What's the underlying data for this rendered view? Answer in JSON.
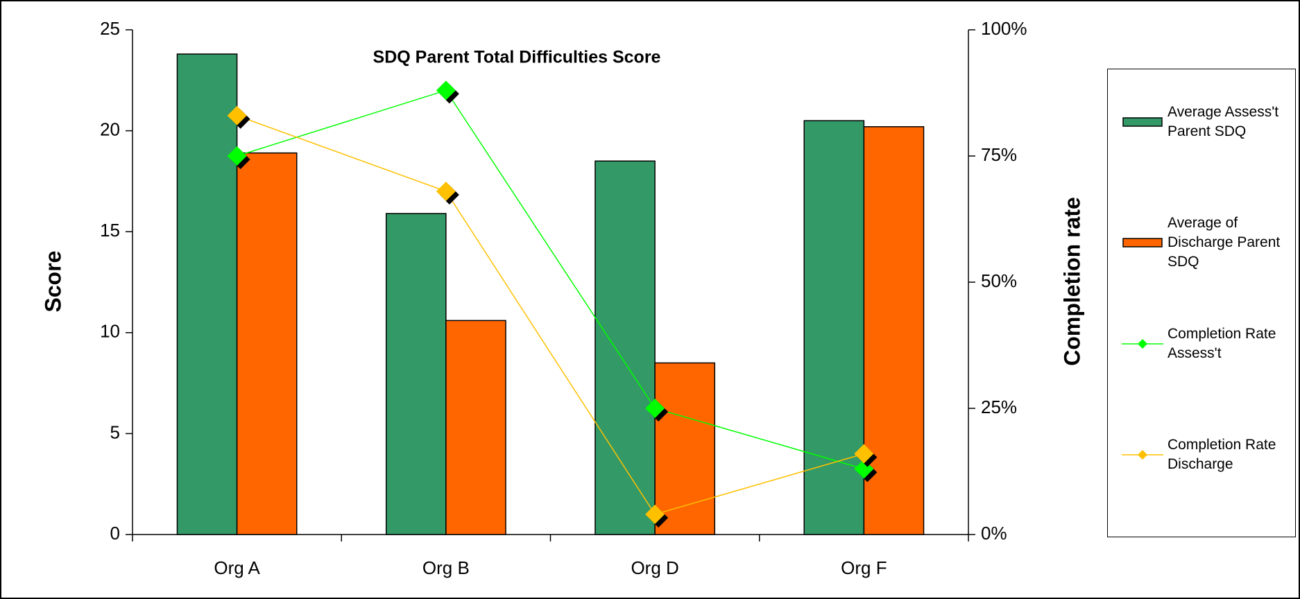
{
  "chart_data": {
    "type": "bar",
    "title": "SDQ Parent Total Difficulties Score",
    "categories": [
      "Org A",
      "Org B",
      "Org D",
      "Org F"
    ],
    "series": [
      {
        "name": "Average Assess't Parent SDQ",
        "color": "#339966",
        "values": [
          23.8,
          15.9,
          18.5,
          20.5
        ]
      },
      {
        "name": "Average of Discharge Parent SDQ",
        "color": "#ff6600",
        "values": [
          18.9,
          10.6,
          8.5,
          20.2
        ]
      },
      {
        "name": "Completion Rate Assess't",
        "color": "#00ff00",
        "type": "line",
        "axis": "y2",
        "values": [
          75,
          88,
          25,
          13
        ]
      },
      {
        "name": "Completion Rate Discharge",
        "color": "#ffc000",
        "type": "line",
        "axis": "y2",
        "values": [
          83,
          68,
          4,
          16
        ]
      }
    ],
    "y_label": "Score",
    "y2_label": "Completion rate",
    "ylim": [
      0,
      25
    ],
    "yticks": [
      0,
      5,
      10,
      15,
      20,
      25
    ],
    "y2lim": [
      0,
      100
    ],
    "y2ticks": [
      {
        "value": 0,
        "label": "0%"
      },
      {
        "value": 25,
        "label": "25%"
      },
      {
        "value": 50,
        "label": "50%"
      },
      {
        "value": 75,
        "label": "75%"
      },
      {
        "value": 100,
        "label": "100%"
      }
    ],
    "legend": "right"
  }
}
